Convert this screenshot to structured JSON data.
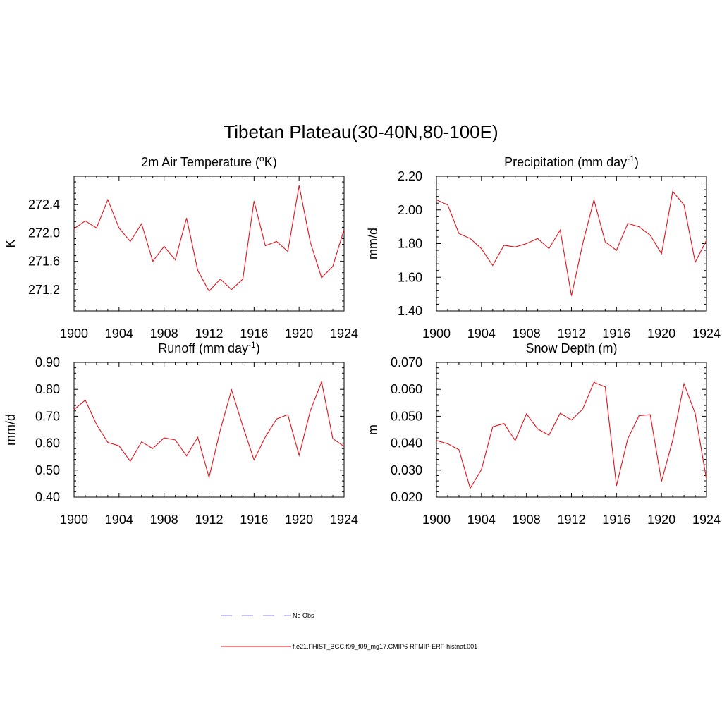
{
  "figure": {
    "title": "Tibetan Plateau(30-40N,80-100E)"
  },
  "colors": {
    "series": "#e8101a",
    "obs": "#8a8ae6",
    "axis": "#000000"
  },
  "legend": {
    "items": [
      {
        "label": "No Obs",
        "style": "dashed",
        "color": "#8a8ae6"
      },
      {
        "label": "f.e21.FHIST_BGC.f09_f09_mg17.CMIP6-RFMIP-ERF-histnat.001",
        "style": "solid",
        "color": "#e8101a"
      }
    ]
  },
  "chart_data": [
    {
      "type": "line",
      "title": "2m Air Temperature (oK)",
      "title_parts": {
        "pre": "2m Air Temperature (",
        "sup": "o",
        "post": "K)"
      },
      "ylabel": "K",
      "xlim": [
        1900,
        1924
      ],
      "ylim": [
        270.9,
        272.8
      ],
      "xticks": [
        1900,
        1904,
        1908,
        1912,
        1916,
        1920,
        1924
      ],
      "xtick_labels": [
        "1900",
        "1904",
        "1908",
        "1912",
        "1916",
        "1920",
        "1924"
      ],
      "yticks": [
        271.2,
        271.6,
        272.0,
        272.4
      ],
      "ytick_labels": [
        "271.2",
        "271.6",
        "272.0",
        "272.4"
      ],
      "x": [
        1900,
        1901,
        1902,
        1903,
        1904,
        1905,
        1906,
        1907,
        1908,
        1909,
        1910,
        1911,
        1912,
        1913,
        1914,
        1915,
        1916,
        1917,
        1918,
        1919,
        1920,
        1921,
        1922,
        1923,
        1924
      ],
      "series": [
        {
          "values": [
            272.06,
            272.17,
            272.07,
            272.47,
            272.07,
            271.88,
            272.13,
            271.6,
            271.81,
            271.62,
            272.21,
            271.47,
            271.18,
            271.35,
            271.2,
            271.35,
            272.45,
            271.82,
            271.88,
            271.74,
            272.67,
            271.87,
            271.37,
            271.53,
            272.05
          ]
        }
      ]
    },
    {
      "type": "line",
      "title": "Precipitation (mm day-1)",
      "title_parts": {
        "pre": "Precipitation (mm day",
        "sup": "-1",
        "post": ")"
      },
      "ylabel": "mm/d",
      "xlim": [
        1900,
        1924
      ],
      "ylim": [
        1.4,
        2.2
      ],
      "xticks": [
        1900,
        1904,
        1908,
        1912,
        1916,
        1920,
        1924
      ],
      "xtick_labels": [
        "1900",
        "1904",
        "1908",
        "1912",
        "1916",
        "1920",
        "1924"
      ],
      "yticks": [
        1.4,
        1.6,
        1.8,
        2.0,
        2.2
      ],
      "ytick_labels": [
        "1.40",
        "1.60",
        "1.80",
        "2.00",
        "2.20"
      ],
      "x": [
        1900,
        1901,
        1902,
        1903,
        1904,
        1905,
        1906,
        1907,
        1908,
        1909,
        1910,
        1911,
        1912,
        1913,
        1914,
        1915,
        1916,
        1917,
        1918,
        1919,
        1920,
        1921,
        1922,
        1923,
        1924
      ],
      "series": [
        {
          "values": [
            2.06,
            2.03,
            1.86,
            1.83,
            1.77,
            1.67,
            1.79,
            1.78,
            1.8,
            1.83,
            1.77,
            1.88,
            1.49,
            1.8,
            2.06,
            1.81,
            1.76,
            1.92,
            1.9,
            1.85,
            1.74,
            2.11,
            2.03,
            1.69,
            1.82
          ]
        }
      ]
    },
    {
      "type": "line",
      "title": "Runoff (mm day-1)",
      "title_parts": {
        "pre": "Runoff (mm day",
        "sup": "-1",
        "post": ")"
      },
      "ylabel": "mm/d",
      "xlim": [
        1900,
        1924
      ],
      "ylim": [
        0.4,
        0.9
      ],
      "xticks": [
        1900,
        1904,
        1908,
        1912,
        1916,
        1920,
        1924
      ],
      "xtick_labels": [
        "1900",
        "1904",
        "1908",
        "1912",
        "1916",
        "1920",
        "1924"
      ],
      "yticks": [
        0.4,
        0.5,
        0.6,
        0.7,
        0.8,
        0.9
      ],
      "ytick_labels": [
        "0.40",
        "0.50",
        "0.60",
        "0.70",
        "0.80",
        "0.90"
      ],
      "x": [
        1900,
        1901,
        1902,
        1903,
        1904,
        1905,
        1906,
        1907,
        1908,
        1909,
        1910,
        1911,
        1912,
        1913,
        1914,
        1915,
        1916,
        1917,
        1918,
        1919,
        1920,
        1921,
        1922,
        1923,
        1924
      ],
      "series": [
        {
          "values": [
            0.725,
            0.76,
            0.67,
            0.603,
            0.59,
            0.533,
            0.605,
            0.58,
            0.62,
            0.612,
            0.553,
            0.622,
            0.473,
            0.65,
            0.798,
            0.663,
            0.538,
            0.623,
            0.69,
            0.706,
            0.555,
            0.72,
            0.828,
            0.617,
            0.588
          ]
        }
      ]
    },
    {
      "type": "line",
      "title": "Snow Depth (m)",
      "title_parts": {
        "pre": "Snow Depth (m)",
        "sup": "",
        "post": ""
      },
      "ylabel": "m",
      "xlim": [
        1900,
        1924
      ],
      "ylim": [
        0.02,
        0.07
      ],
      "xticks": [
        1900,
        1904,
        1908,
        1912,
        1916,
        1920,
        1924
      ],
      "xtick_labels": [
        "1900",
        "1904",
        "1908",
        "1912",
        "1916",
        "1920",
        "1924"
      ],
      "yticks": [
        0.02,
        0.03,
        0.04,
        0.05,
        0.06,
        0.07
      ],
      "ytick_labels": [
        "0.020",
        "0.030",
        "0.040",
        "0.050",
        "0.060",
        "0.070"
      ],
      "x": [
        1900,
        1901,
        1902,
        1903,
        1904,
        1905,
        1906,
        1907,
        1908,
        1909,
        1910,
        1911,
        1912,
        1913,
        1914,
        1915,
        1916,
        1917,
        1918,
        1919,
        1920,
        1921,
        1922,
        1923,
        1924
      ],
      "series": [
        {
          "values": [
            0.041,
            0.0398,
            0.0376,
            0.0233,
            0.0302,
            0.0461,
            0.0473,
            0.041,
            0.0509,
            0.0453,
            0.043,
            0.0511,
            0.0486,
            0.0527,
            0.0626,
            0.0609,
            0.0242,
            0.0416,
            0.0502,
            0.0506,
            0.0258,
            0.0411,
            0.0621,
            0.051,
            0.0265
          ]
        }
      ]
    }
  ]
}
